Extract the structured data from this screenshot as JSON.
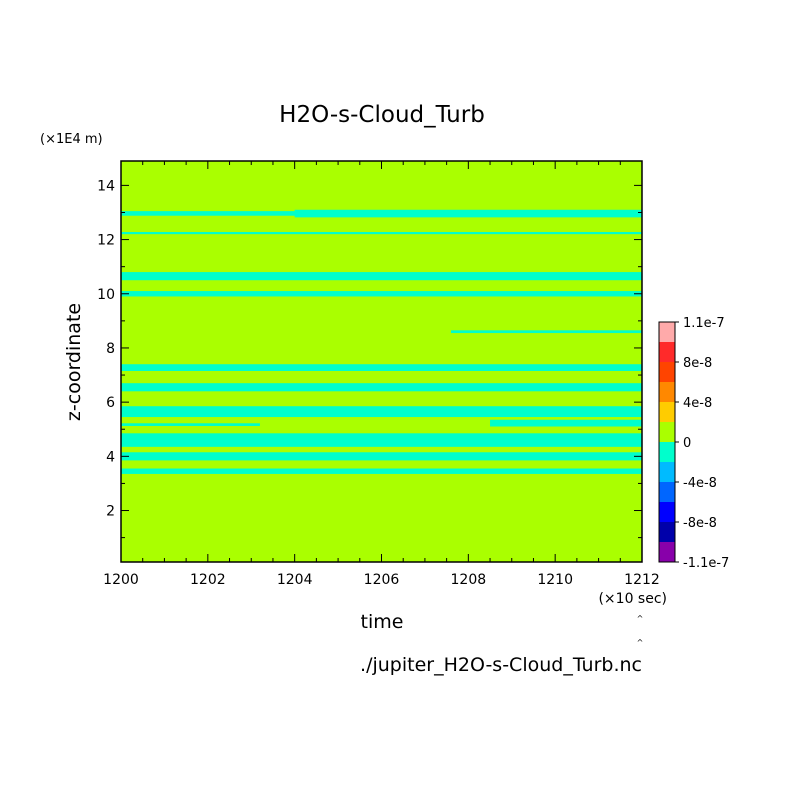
{
  "chart_data": {
    "type": "heatmap",
    "title": "H2O-s-Cloud_Turb",
    "xlabel": "time",
    "ylabel": "z-coordinate",
    "x_unit": "(×10 sec)",
    "y_unit": "(×1E4 m)",
    "source_file": "./jupiter_H2O-s-Cloud_Turb.nc",
    "xlim": [
      1200,
      1212
    ],
    "ylim": [
      0.1,
      14.9
    ],
    "x_ticks": [
      "1200",
      "1202",
      "1204",
      "1206",
      "1208",
      "1210",
      "1212"
    ],
    "x_tick_values": [
      1200,
      1202,
      1204,
      1206,
      1208,
      1210,
      1212
    ],
    "y_ticks": [
      "2",
      "4",
      "6",
      "8",
      "10",
      "12",
      "14"
    ],
    "y_tick_values": [
      2,
      4,
      6,
      8,
      10,
      12,
      14
    ],
    "background_value_color": "#aaff00",
    "colorbar": {
      "labels": [
        "1.1e-7",
        "8e-8",
        "4e-8",
        "0",
        "-4e-8",
        "-8e-8",
        "-1.1e-7"
      ],
      "colors": [
        "#ffaaaa",
        "#ff2a2a",
        "#ff4400",
        "#ff8800",
        "#ffcc00",
        "#aaff00",
        "#00ffcc",
        "#00bbff",
        "#0066ff",
        "#0000ff",
        "#0000aa",
        "#8800aa"
      ]
    },
    "bands": [
      {
        "color": "#00ffcc",
        "x0": 1200,
        "x1": 1212,
        "y0": 12.88,
        "y1": 13.05
      },
      {
        "color": "#00ffcc",
        "x0": 1204,
        "x1": 1212,
        "y0": 12.82,
        "y1": 13.1
      },
      {
        "color": "#00ffcc",
        "x0": 1200,
        "x1": 1212,
        "y0": 12.2,
        "y1": 12.28
      },
      {
        "color": "#00ffcc",
        "x0": 1200,
        "x1": 1212,
        "y0": 10.5,
        "y1": 10.8
      },
      {
        "color": "#00ffcc",
        "x0": 1200,
        "x1": 1212,
        "y0": 9.9,
        "y1": 10.1
      },
      {
        "color": "#00ffcc",
        "x0": 1207.6,
        "x1": 1212,
        "y0": 8.55,
        "y1": 8.65
      },
      {
        "color": "#00ffcc",
        "x0": 1200,
        "x1": 1212,
        "y0": 7.15,
        "y1": 7.4
      },
      {
        "color": "#00ffcc",
        "x0": 1200,
        "x1": 1212,
        "y0": 6.4,
        "y1": 6.7
      },
      {
        "color": "#00ffcc",
        "x0": 1200,
        "x1": 1212,
        "y0": 5.45,
        "y1": 5.85
      },
      {
        "color": "#00ffcc",
        "x0": 1200,
        "x1": 1203.2,
        "y0": 5.12,
        "y1": 5.22
      },
      {
        "color": "#00ffcc",
        "x0": 1208.5,
        "x1": 1212,
        "y0": 5.1,
        "y1": 5.35
      },
      {
        "color": "#00ffcc",
        "x0": 1200,
        "x1": 1212,
        "y0": 4.35,
        "y1": 4.85
      },
      {
        "color": "#00ffcc",
        "x0": 1200,
        "x1": 1212,
        "y0": 3.85,
        "y1": 4.15
      },
      {
        "color": "#00ffcc",
        "x0": 1200,
        "x1": 1212,
        "y0": 3.35,
        "y1": 3.55
      }
    ]
  }
}
